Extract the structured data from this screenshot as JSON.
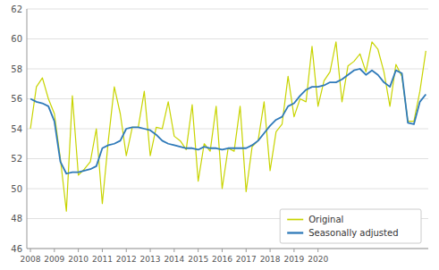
{
  "chart_data": {
    "type": "line",
    "x": [
      2008,
      2008.25,
      2008.5,
      2008.75,
      2009,
      2009.25,
      2009.5,
      2009.75,
      2010,
      2010.25,
      2010.5,
      2010.75,
      2011,
      2011.25,
      2011.5,
      2011.75,
      2012,
      2012.25,
      2012.5,
      2012.75,
      2013,
      2013.25,
      2013.5,
      2013.75,
      2014,
      2014.25,
      2014.5,
      2014.75,
      2015,
      2015.25,
      2015.5,
      2015.75,
      2016,
      2016.25,
      2016.5,
      2016.75,
      2017,
      2017.25,
      2017.5,
      2017.75,
      2018,
      2018.25,
      2018.5,
      2018.75,
      2019,
      2019.25,
      2019.5,
      2019.75,
      2020,
      2020.25,
      2020.5,
      2020.75,
      2021,
      2021.25,
      2021.5,
      2021.75,
      2022,
      2022.25,
      2022.5,
      2022.75,
      2023,
      2023.25,
      2023.5,
      2023.75,
      2024,
      2024.25,
      2024.5
    ],
    "series": [
      {
        "name": "Original",
        "color": "#c8d400",
        "values": [
          54.0,
          56.8,
          57.4,
          56.0,
          55.0,
          52.0,
          48.5,
          56.2,
          50.9,
          51.3,
          51.8,
          54.0,
          49.0,
          53.2,
          56.8,
          55.0,
          52.2,
          54.1,
          54.1,
          56.5,
          52.2,
          54.1,
          54.0,
          55.8,
          53.5,
          53.2,
          52.6,
          55.6,
          50.5,
          53.0,
          52.5,
          55.5,
          50.0,
          52.7,
          52.5,
          55.5,
          49.8,
          52.8,
          53.2,
          55.8,
          51.2,
          53.8,
          54.3,
          57.5,
          54.8,
          56.0,
          55.8,
          59.5,
          55.5,
          57.2,
          57.8,
          59.8,
          55.8,
          58.2,
          58.5,
          59.0,
          57.8,
          59.8,
          59.3,
          57.8,
          55.5,
          58.3,
          57.5,
          54.5,
          54.5,
          56.5,
          59.2
        ]
      },
      {
        "name": "Seasonally adjusted",
        "color": "#2f7ab9",
        "values": [
          56.0,
          55.8,
          55.7,
          55.5,
          54.5,
          51.8,
          51.0,
          51.1,
          51.1,
          51.2,
          51.3,
          51.5,
          52.7,
          52.9,
          53.0,
          53.2,
          54.0,
          54.1,
          54.1,
          54.0,
          53.9,
          53.6,
          53.2,
          53.0,
          52.9,
          52.8,
          52.7,
          52.7,
          52.6,
          52.8,
          52.7,
          52.7,
          52.6,
          52.7,
          52.7,
          52.7,
          52.7,
          52.9,
          53.2,
          53.7,
          54.2,
          54.6,
          54.8,
          55.5,
          55.7,
          56.2,
          56.6,
          56.8,
          56.8,
          56.9,
          57.1,
          57.1,
          57.3,
          57.6,
          57.9,
          58.0,
          57.6,
          57.9,
          57.6,
          57.1,
          56.8,
          57.9,
          57.7,
          54.4,
          54.3,
          55.8,
          56.3
        ]
      }
    ],
    "xlim": [
      2007.85,
      2024.6
    ],
    "xticks": [
      2008,
      2009,
      2010,
      2011,
      2012,
      2013,
      2014,
      2015,
      2016,
      2017,
      2018,
      2019,
      2020
    ],
    "ylim": [
      46,
      62
    ],
    "yticks": [
      46,
      48,
      50,
      52,
      54,
      56,
      58,
      60,
      62
    ],
    "grid": true,
    "legend": "lower right"
  }
}
